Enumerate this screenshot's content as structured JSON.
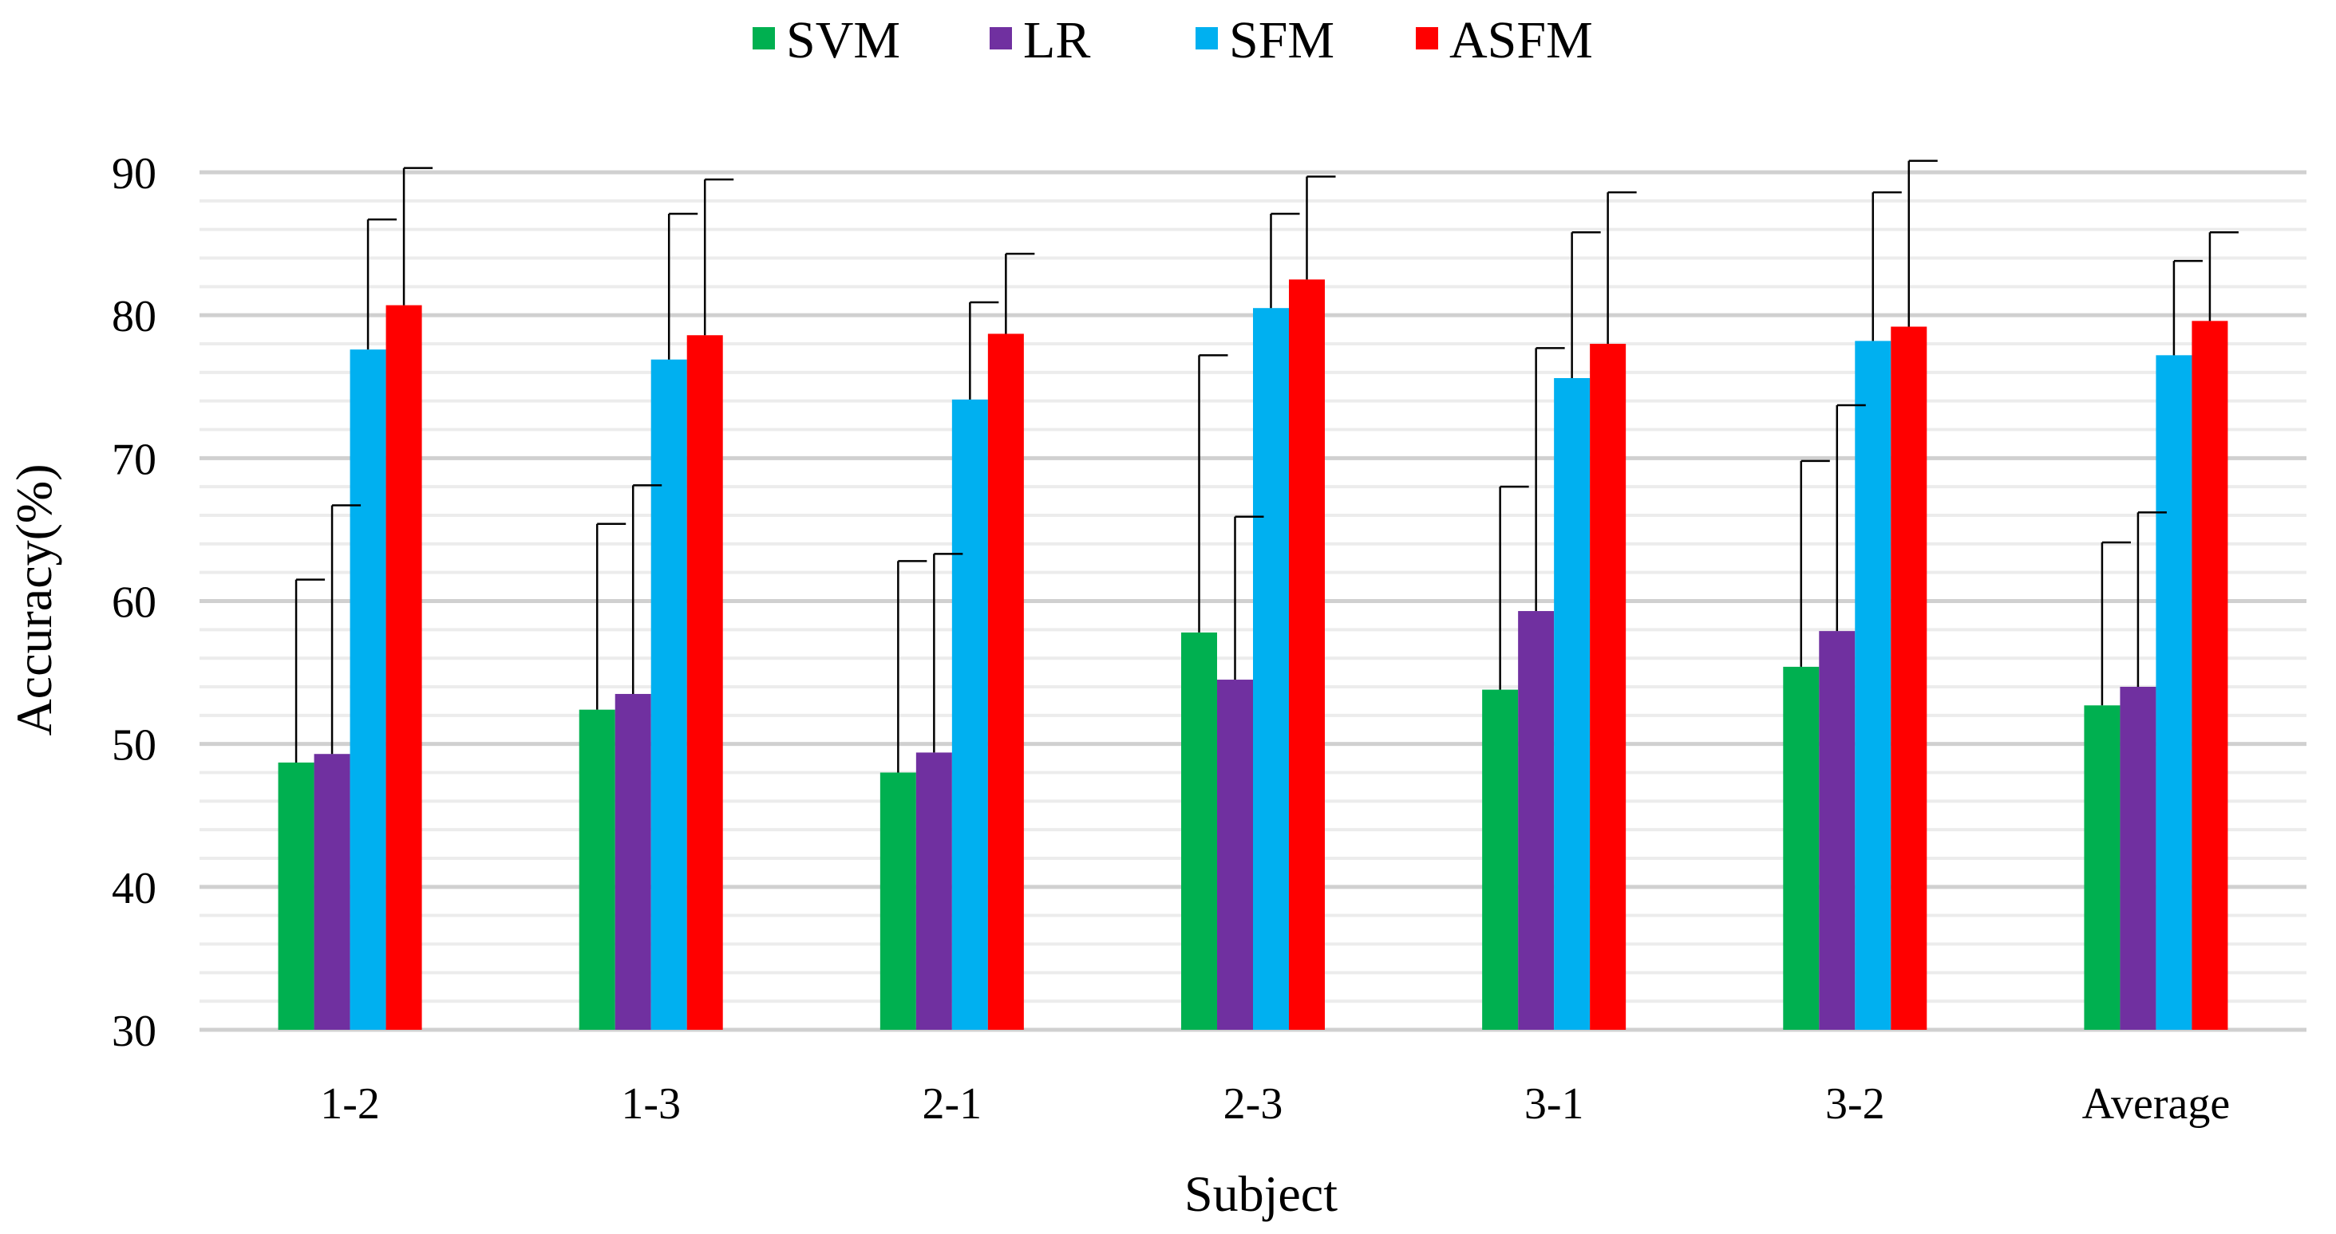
{
  "chart_data": {
    "type": "bar",
    "title": "",
    "xlabel": "Subject",
    "ylabel": "Accuracy(%)",
    "ylim": [
      30,
      90
    ],
    "y_ticks": [
      30,
      40,
      50,
      60,
      70,
      80,
      90
    ],
    "grid": true,
    "legend_position": "top-center",
    "categories": [
      "1-2",
      "1-3",
      "2-1",
      "2-3",
      "3-1",
      "3-2",
      "Average"
    ],
    "series": [
      {
        "name": "SVM",
        "color": "#00B050",
        "values": [
          48.7,
          52.4,
          48.0,
          57.8,
          53.8,
          55.4,
          52.7
        ],
        "error_upper": [
          61.5,
          65.4,
          62.8,
          77.2,
          68.0,
          69.8,
          64.1
        ]
      },
      {
        "name": "LR",
        "color": "#7030A0",
        "values": [
          49.3,
          53.5,
          49.4,
          54.5,
          59.3,
          57.9,
          54.0
        ],
        "error_upper": [
          66.7,
          68.1,
          63.3,
          65.9,
          77.7,
          73.7,
          66.2
        ]
      },
      {
        "name": "SFM",
        "color": "#00B0F0",
        "values": [
          77.6,
          76.9,
          74.1,
          80.5,
          75.6,
          78.2,
          77.2
        ],
        "error_upper": [
          86.7,
          87.1,
          80.9,
          87.1,
          85.8,
          88.6,
          83.8
        ]
      },
      {
        "name": "ASFM",
        "color": "#FF0000",
        "values": [
          80.7,
          78.6,
          78.7,
          82.5,
          78.0,
          79.2,
          79.6
        ],
        "error_upper": [
          90.3,
          89.5,
          84.3,
          89.7,
          88.6,
          90.8,
          85.8
        ]
      }
    ]
  }
}
